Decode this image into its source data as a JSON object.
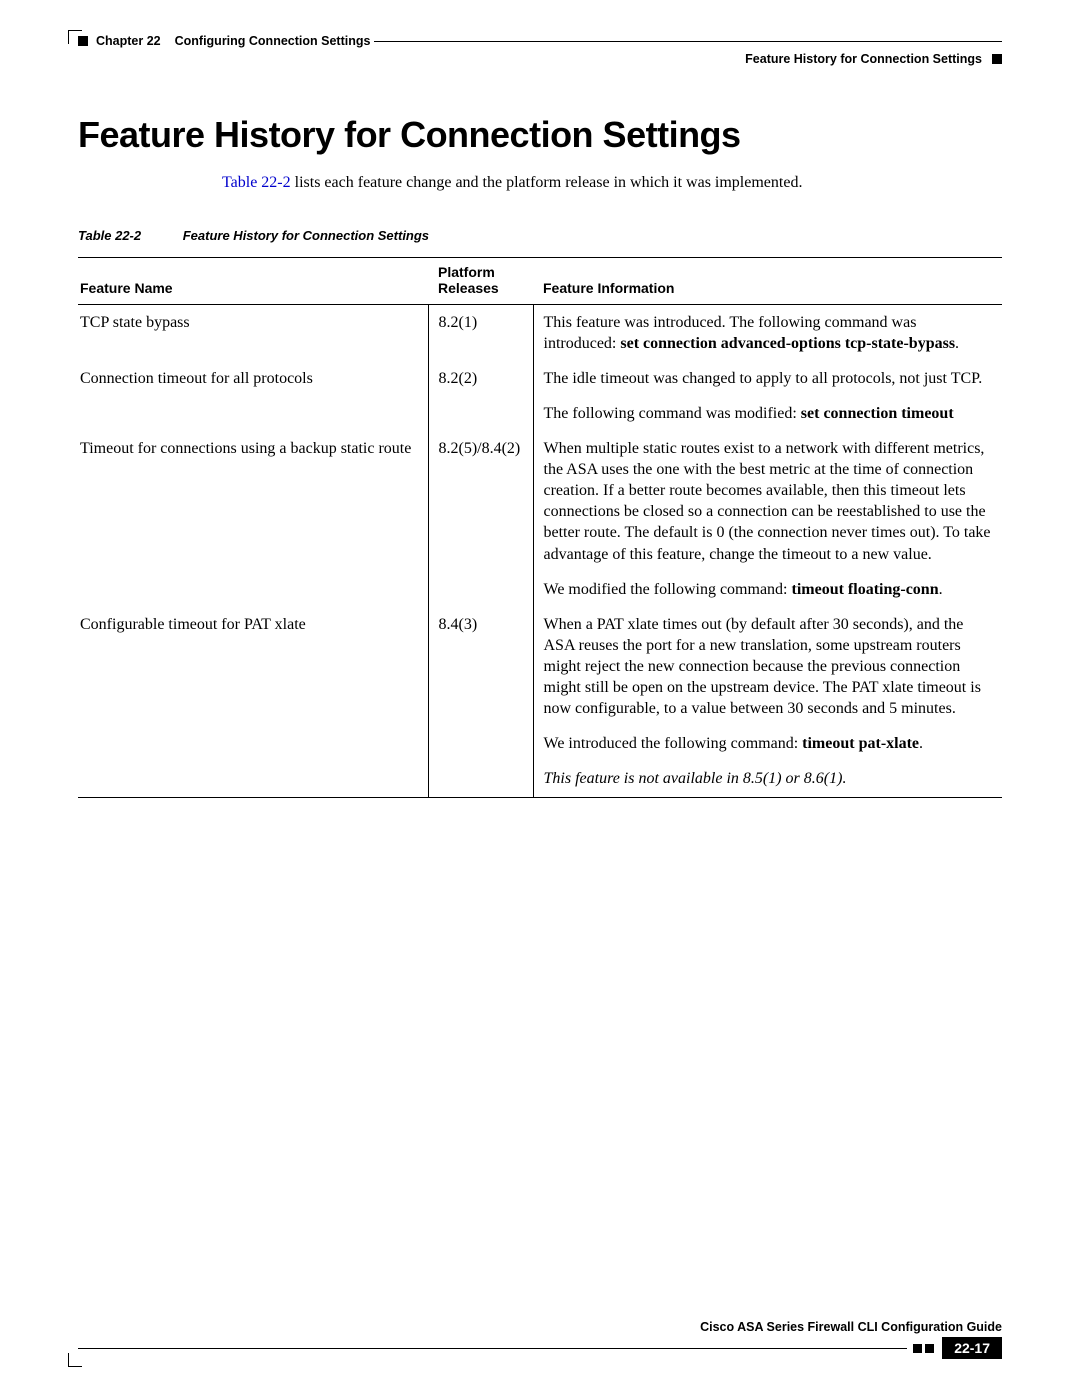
{
  "header": {
    "chapter_label": "Chapter 22",
    "chapter_title": "Configuring Connection Settings",
    "section_title": "Feature History for Connection Settings"
  },
  "main": {
    "title": "Feature History for Connection Settings",
    "intro_xref": "Table 22-2",
    "intro_rest": " lists each feature change and the platform release in which it was implemented."
  },
  "table": {
    "caption_number": "Table 22-2",
    "caption_title": "Feature History for Connection Settings",
    "headers": {
      "feature_name": "Feature Name",
      "platform_releases_l1": "Platform",
      "platform_releases_l2": "Releases",
      "feature_info": "Feature Information"
    },
    "rows": [
      {
        "name": "TCP state bypass",
        "release": "8.2(1)",
        "info_html": "This feature was introduced. The following command was introduced: <span class=\"bold\">set connection advanced-options tcp-state-bypass</span>."
      },
      {
        "name": "Connection timeout for all protocols",
        "release": "8.2(2)",
        "info_html": "<p>The idle timeout was changed to apply to all protocols, not just TCP.</p><p>The following command was modified: <span class=\"bold\">set connection timeout</span></p>"
      },
      {
        "name": "Timeout for connections using a backup static route",
        "release": "8.2(5)/8.4(2)",
        "info_html": "<p>When multiple static routes exist to a network with different metrics, the ASA uses the one with the best metric at the time of connection creation. If a better route becomes available, then this timeout lets connections be closed so a connection can be reestablished to use the better route. The default is 0 (the connection never times out). To take advantage of this feature, change the timeout to a new value.</p><p>We modified the following command: <span class=\"bold\">timeout floating-conn</span>.</p>"
      },
      {
        "name": "Configurable timeout for PAT xlate",
        "release": "8.4(3)",
        "info_html": "<p>When a PAT xlate times out (by default after 30 seconds), and the ASA reuses the port for a new translation, some upstream routers might reject the new connection because the previous connection might still be open on the upstream device. The PAT xlate timeout is now configurable, to a value between 30 seconds and 5 minutes.</p><p>We introduced the following command: <span class=\"bold\">timeout pat-xlate</span>.</p><p class=\"italic\">This feature is not available in 8.5(1) or 8.6(1).</p>"
      }
    ]
  },
  "footer": {
    "guide": "Cisco ASA Series Firewall CLI Configuration Guide",
    "page_number": "22-17"
  },
  "colors": {
    "text": "#000000",
    "xref": "#0000cc",
    "page_bg": "#ffffff"
  }
}
